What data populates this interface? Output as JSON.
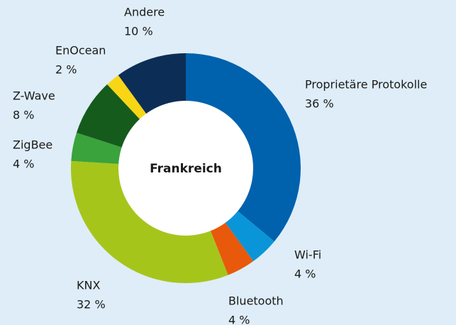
{
  "chart_data": {
    "type": "donut",
    "center_label": "Frankreich",
    "categories": [
      "Proprietäre Protokolle",
      "Wi-Fi",
      "Bluetooth",
      "KNX",
      "ZigBee",
      "Z-Wave",
      "EnOcean",
      "Andere"
    ],
    "values": [
      36,
      4,
      4,
      32,
      4,
      8,
      2,
      10
    ],
    "value_labels": [
      "36 %",
      "4 %",
      "4 %",
      "32 %",
      "4 %",
      "8 %",
      "2 %",
      "10 %"
    ],
    "colors": [
      "#0061ad",
      "#0a95d8",
      "#e8590c",
      "#a6c51b",
      "#3aa33c",
      "#155b1c",
      "#f8d616",
      "#0c2e56"
    ]
  }
}
